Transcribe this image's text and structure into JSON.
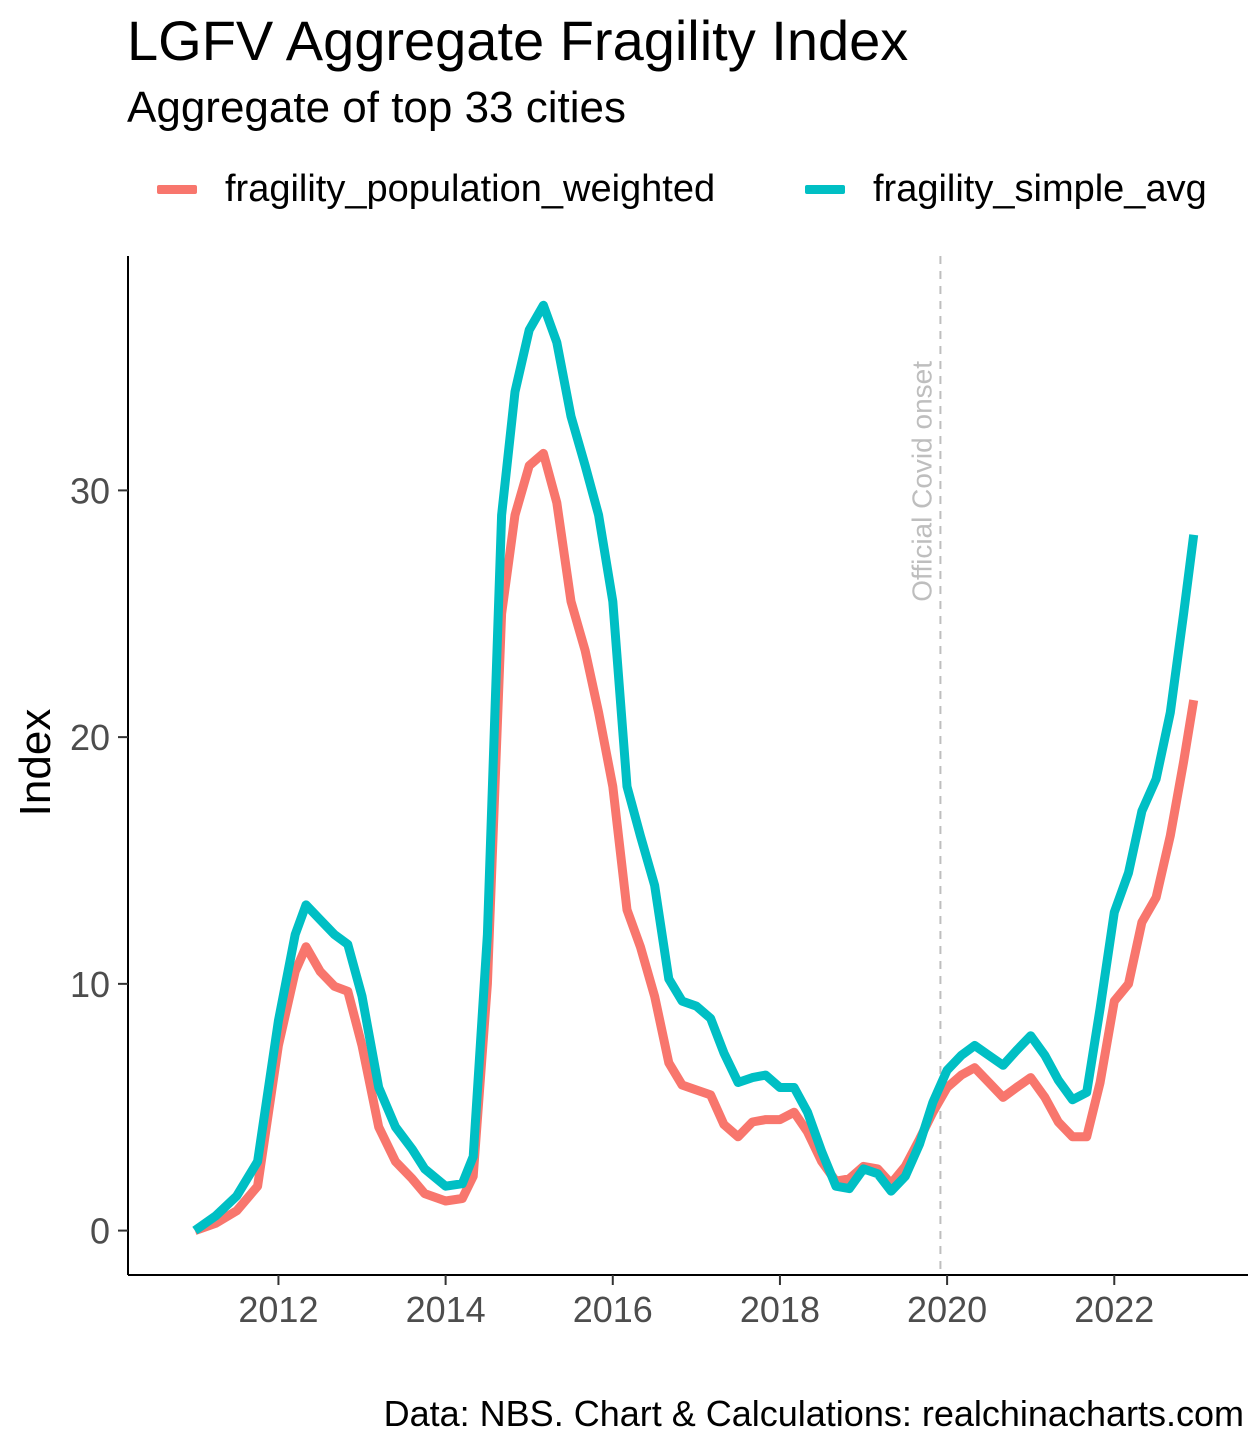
{
  "title": "LGFV Aggregate Fragility Index",
  "subtitle": "Aggregate of top 33 cities",
  "caption": "Data: NBS. Chart & Calculations: realchinacharts.com",
  "chart_data": {
    "type": "line",
    "ylabel": "Index",
    "xlabel": "",
    "xlim": [
      2010.2,
      2023.6
    ],
    "ylim": [
      -1.8,
      39.5
    ],
    "x_ticks": [
      2012,
      2014,
      2016,
      2018,
      2020,
      2022
    ],
    "x_tick_labels": [
      "2012",
      "2014",
      "2016",
      "2018",
      "2020",
      "2022"
    ],
    "y_ticks": [
      0,
      10,
      20,
      30
    ],
    "y_tick_labels": [
      "0",
      "10",
      "20",
      "30"
    ],
    "grid": false,
    "legend_position": "top",
    "annotation": {
      "x": 2019.92,
      "label": "Official Covid onset",
      "color": "#bebebe"
    },
    "series": [
      {
        "name": "fragility_population_weighted",
        "color": "#F8766D",
        "points": [
          [
            2011.0,
            0.0
          ],
          [
            2011.25,
            0.3
          ],
          [
            2011.5,
            0.8
          ],
          [
            2011.75,
            1.8
          ],
          [
            2012.0,
            7.5
          ],
          [
            2012.2,
            10.5
          ],
          [
            2012.33,
            11.5
          ],
          [
            2012.5,
            10.5
          ],
          [
            2012.67,
            9.9
          ],
          [
            2012.83,
            9.7
          ],
          [
            2013.0,
            7.5
          ],
          [
            2013.2,
            4.2
          ],
          [
            2013.4,
            2.8
          ],
          [
            2013.6,
            2.1
          ],
          [
            2013.75,
            1.5
          ],
          [
            2014.0,
            1.2
          ],
          [
            2014.2,
            1.3
          ],
          [
            2014.33,
            2.2
          ],
          [
            2014.5,
            10.0
          ],
          [
            2014.67,
            25.0
          ],
          [
            2014.83,
            29.0
          ],
          [
            2015.0,
            31.0
          ],
          [
            2015.17,
            31.5
          ],
          [
            2015.33,
            29.5
          ],
          [
            2015.5,
            25.5
          ],
          [
            2015.67,
            23.5
          ],
          [
            2015.83,
            21.0
          ],
          [
            2016.0,
            18.0
          ],
          [
            2016.17,
            13.0
          ],
          [
            2016.33,
            11.5
          ],
          [
            2016.5,
            9.5
          ],
          [
            2016.67,
            6.8
          ],
          [
            2016.83,
            5.9
          ],
          [
            2017.0,
            5.7
          ],
          [
            2017.17,
            5.5
          ],
          [
            2017.33,
            4.3
          ],
          [
            2017.5,
            3.8
          ],
          [
            2017.67,
            4.4
          ],
          [
            2017.83,
            4.5
          ],
          [
            2018.0,
            4.5
          ],
          [
            2018.17,
            4.8
          ],
          [
            2018.33,
            4.0
          ],
          [
            2018.5,
            2.8
          ],
          [
            2018.67,
            2.0
          ],
          [
            2018.83,
            2.1
          ],
          [
            2019.0,
            2.6
          ],
          [
            2019.17,
            2.5
          ],
          [
            2019.33,
            1.9
          ],
          [
            2019.5,
            2.6
          ],
          [
            2019.67,
            3.7
          ],
          [
            2019.83,
            4.8
          ],
          [
            2020.0,
            5.8
          ],
          [
            2020.17,
            6.3
          ],
          [
            2020.33,
            6.6
          ],
          [
            2020.5,
            6.0
          ],
          [
            2020.67,
            5.4
          ],
          [
            2020.83,
            5.8
          ],
          [
            2021.0,
            6.2
          ],
          [
            2021.17,
            5.4
          ],
          [
            2021.33,
            4.4
          ],
          [
            2021.5,
            3.8
          ],
          [
            2021.67,
            3.8
          ],
          [
            2021.83,
            6.0
          ],
          [
            2022.0,
            9.3
          ],
          [
            2022.17,
            10.0
          ],
          [
            2022.33,
            12.5
          ],
          [
            2022.5,
            13.5
          ],
          [
            2022.67,
            16.0
          ],
          [
            2022.83,
            19.0
          ],
          [
            2022.95,
            21.5
          ]
        ]
      },
      {
        "name": "fragility_simple_avg",
        "color": "#00BFC4",
        "points": [
          [
            2011.0,
            0.0
          ],
          [
            2011.25,
            0.6
          ],
          [
            2011.5,
            1.4
          ],
          [
            2011.75,
            2.8
          ],
          [
            2012.0,
            8.5
          ],
          [
            2012.2,
            12.0
          ],
          [
            2012.33,
            13.2
          ],
          [
            2012.5,
            12.6
          ],
          [
            2012.67,
            12.0
          ],
          [
            2012.83,
            11.6
          ],
          [
            2013.0,
            9.5
          ],
          [
            2013.2,
            5.8
          ],
          [
            2013.4,
            4.2
          ],
          [
            2013.6,
            3.3
          ],
          [
            2013.75,
            2.5
          ],
          [
            2014.0,
            1.8
          ],
          [
            2014.2,
            1.9
          ],
          [
            2014.33,
            3.0
          ],
          [
            2014.5,
            12.0
          ],
          [
            2014.67,
            29.0
          ],
          [
            2014.83,
            34.0
          ],
          [
            2015.0,
            36.5
          ],
          [
            2015.17,
            37.5
          ],
          [
            2015.33,
            36.0
          ],
          [
            2015.5,
            33.0
          ],
          [
            2015.67,
            31.0
          ],
          [
            2015.83,
            29.0
          ],
          [
            2016.0,
            25.5
          ],
          [
            2016.17,
            18.0
          ],
          [
            2016.33,
            16.0
          ],
          [
            2016.5,
            14.0
          ],
          [
            2016.67,
            10.2
          ],
          [
            2016.83,
            9.3
          ],
          [
            2017.0,
            9.1
          ],
          [
            2017.17,
            8.6
          ],
          [
            2017.33,
            7.2
          ],
          [
            2017.5,
            6.0
          ],
          [
            2017.67,
            6.2
          ],
          [
            2017.83,
            6.3
          ],
          [
            2018.0,
            5.8
          ],
          [
            2018.17,
            5.8
          ],
          [
            2018.33,
            4.8
          ],
          [
            2018.5,
            3.2
          ],
          [
            2018.67,
            1.8
          ],
          [
            2018.83,
            1.7
          ],
          [
            2019.0,
            2.5
          ],
          [
            2019.17,
            2.3
          ],
          [
            2019.33,
            1.6
          ],
          [
            2019.5,
            2.2
          ],
          [
            2019.67,
            3.5
          ],
          [
            2019.83,
            5.2
          ],
          [
            2020.0,
            6.5
          ],
          [
            2020.17,
            7.1
          ],
          [
            2020.33,
            7.5
          ],
          [
            2020.5,
            7.1
          ],
          [
            2020.67,
            6.7
          ],
          [
            2020.83,
            7.3
          ],
          [
            2021.0,
            7.9
          ],
          [
            2021.17,
            7.1
          ],
          [
            2021.33,
            6.1
          ],
          [
            2021.5,
            5.3
          ],
          [
            2021.67,
            5.6
          ],
          [
            2021.83,
            9.0
          ],
          [
            2022.0,
            12.9
          ],
          [
            2022.17,
            14.5
          ],
          [
            2022.33,
            17.0
          ],
          [
            2022.5,
            18.3
          ],
          [
            2022.67,
            21.0
          ],
          [
            2022.83,
            25.0
          ],
          [
            2022.95,
            28.2
          ]
        ]
      }
    ]
  }
}
